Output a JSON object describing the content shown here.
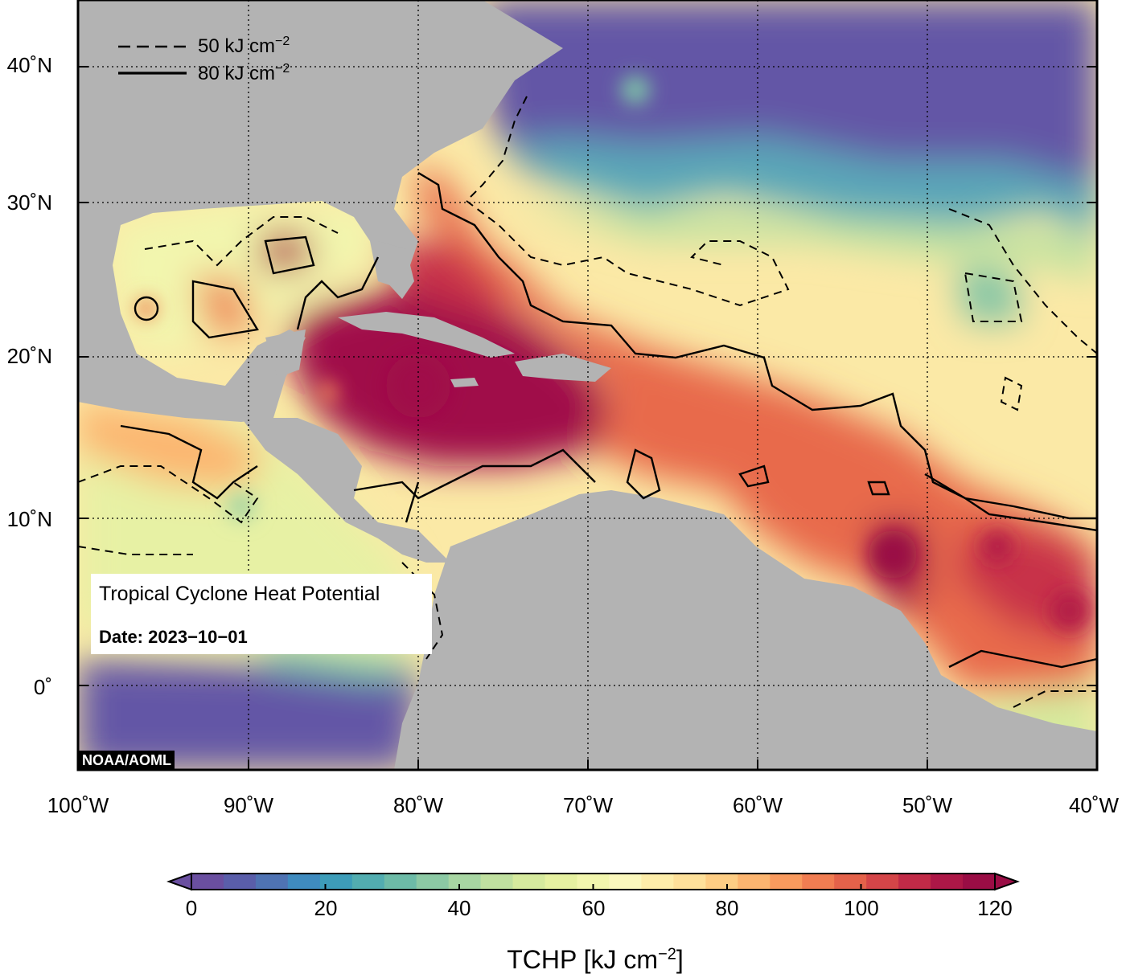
{
  "map": {
    "lat_labels": [
      "40˚N",
      "30˚N",
      "20˚N",
      "10˚N",
      "0˚"
    ],
    "lon_labels": [
      "100˚W",
      "90˚W",
      "80˚W",
      "70˚W",
      "60˚W",
      "50˚W",
      "40˚W"
    ],
    "colors": {
      "land": "#b3b3b3",
      "ocean_low": "#6458a8",
      "tchp_high": "#a01048"
    }
  },
  "legend": {
    "dashed_label": "50 kJ cm",
    "solid_label": "80 kJ cm",
    "superscript": "−2"
  },
  "info": {
    "title": "Tropical Cyclone Heat Potential",
    "date": "Date: 2023−10−01"
  },
  "credit": "NOAA/AOML",
  "colorbar": {
    "tick_labels": [
      "0",
      "20",
      "40",
      "60",
      "80",
      "100",
      "120"
    ],
    "title": "TCHP [kJ cm",
    "title_sup": "−2",
    "title_end": "]",
    "colors": [
      "#6a4fa0",
      "#5a5eaa",
      "#4f73b3",
      "#3f8bbf",
      "#3d9db9",
      "#52adb0",
      "#6dbba7",
      "#8cc9a4",
      "#a8d6a3",
      "#c0e0a0",
      "#d6ea9e",
      "#e6f1a1",
      "#f2f6ae",
      "#fbf8bd",
      "#fdedaa",
      "#fde09a",
      "#fdcd84",
      "#fcb570",
      "#f99a5e",
      "#f17d52",
      "#e4624a",
      "#d44548",
      "#c12a47",
      "#ad1747",
      "#9a0d45"
    ]
  }
}
